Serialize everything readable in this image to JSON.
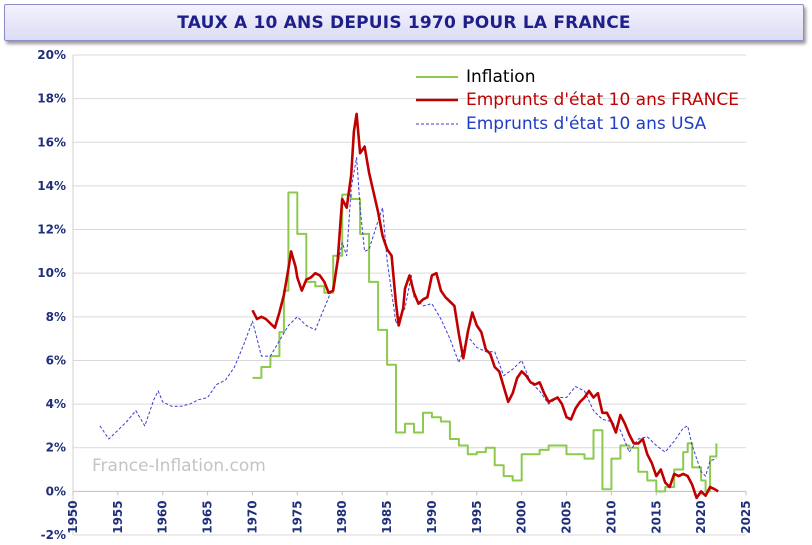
{
  "chart_data": {
    "type": "line",
    "title": "TAUX A 10 ANS DEPUIS 1970 POUR LA FRANCE",
    "watermark": "France-Inflation.com",
    "xlim": [
      1950,
      2025
    ],
    "ylim": [
      -2,
      20
    ],
    "x_ticks": [
      "1950",
      "1955",
      "1960",
      "1965",
      "1970",
      "1975",
      "1980",
      "1985",
      "1990",
      "1995",
      "2000",
      "2005",
      "2010",
      "2015",
      "2020",
      "2025"
    ],
    "y_ticks": [
      "-2%",
      "0%",
      "2%",
      "4%",
      "6%",
      "8%",
      "10%",
      "12%",
      "14%",
      "16%",
      "18%",
      "20%"
    ],
    "grid": "horizontal",
    "legend_position": "top-right",
    "series": [
      {
        "name": "Inflation",
        "color": "#8dc94d",
        "style": "step",
        "points": [
          [
            1970,
            5.2
          ],
          [
            1971,
            5.7
          ],
          [
            1972,
            6.2
          ],
          [
            1973,
            7.3
          ],
          [
            1973.5,
            9.2
          ],
          [
            1974,
            13.7
          ],
          [
            1975,
            11.8
          ],
          [
            1976,
            9.6
          ],
          [
            1977,
            9.4
          ],
          [
            1978,
            9.1
          ],
          [
            1979,
            10.8
          ],
          [
            1980,
            13.6
          ],
          [
            1981,
            13.4
          ],
          [
            1982,
            11.8
          ],
          [
            1983,
            9.6
          ],
          [
            1984,
            7.4
          ],
          [
            1985,
            5.8
          ],
          [
            1986,
            2.7
          ],
          [
            1987,
            3.1
          ],
          [
            1988,
            2.7
          ],
          [
            1989,
            3.6
          ],
          [
            1990,
            3.4
          ],
          [
            1991,
            3.2
          ],
          [
            1992,
            2.4
          ],
          [
            1993,
            2.1
          ],
          [
            1994,
            1.7
          ],
          [
            1995,
            1.8
          ],
          [
            1996,
            2.0
          ],
          [
            1997,
            1.2
          ],
          [
            1998,
            0.7
          ],
          [
            1999,
            0.5
          ],
          [
            2000,
            1.7
          ],
          [
            2001,
            1.7
          ],
          [
            2002,
            1.9
          ],
          [
            2003,
            2.1
          ],
          [
            2004,
            2.1
          ],
          [
            2005,
            1.7
          ],
          [
            2006,
            1.7
          ],
          [
            2007,
            1.5
          ],
          [
            2008,
            2.8
          ],
          [
            2009,
            0.1
          ],
          [
            2010,
            1.5
          ],
          [
            2011,
            2.1
          ],
          [
            2012,
            2.0
          ],
          [
            2013,
            0.9
          ],
          [
            2014,
            0.5
          ],
          [
            2015,
            0.0
          ],
          [
            2016,
            0.2
          ],
          [
            2017,
            1.0
          ],
          [
            2018,
            1.8
          ],
          [
            2018.5,
            2.2
          ],
          [
            2019,
            1.1
          ],
          [
            2020,
            0.5
          ],
          [
            2020.5,
            0.0
          ],
          [
            2021,
            1.6
          ],
          [
            2021.7,
            2.2
          ]
        ]
      },
      {
        "name": "Emprunts d'état 10 ans FRANCE",
        "color": "#c00000",
        "style": "line",
        "points": [
          [
            1970,
            8.3
          ],
          [
            1970.5,
            7.9
          ],
          [
            1971,
            8.0
          ],
          [
            1971.5,
            7.9
          ],
          [
            1972,
            7.7
          ],
          [
            1972.5,
            7.5
          ],
          [
            1973,
            8.2
          ],
          [
            1973.5,
            9.0
          ],
          [
            1974,
            10.2
          ],
          [
            1974.3,
            11.0
          ],
          [
            1974.8,
            10.3
          ],
          [
            1975,
            9.8
          ],
          [
            1975.5,
            9.2
          ],
          [
            1976,
            9.7
          ],
          [
            1976.5,
            9.8
          ],
          [
            1977,
            10.0
          ],
          [
            1977.5,
            9.9
          ],
          [
            1978,
            9.6
          ],
          [
            1978.5,
            9.1
          ],
          [
            1979,
            9.2
          ],
          [
            1979.5,
            10.6
          ],
          [
            1980,
            13.4
          ],
          [
            1980.5,
            13.0
          ],
          [
            1981,
            14.5
          ],
          [
            1981.3,
            16.5
          ],
          [
            1981.6,
            17.3
          ],
          [
            1982,
            15.5
          ],
          [
            1982.5,
            15.8
          ],
          [
            1983,
            14.6
          ],
          [
            1983.5,
            13.7
          ],
          [
            1984,
            12.8
          ],
          [
            1984.5,
            11.7
          ],
          [
            1985,
            11.1
          ],
          [
            1985.5,
            10.8
          ],
          [
            1986,
            8.6
          ],
          [
            1986.3,
            7.6
          ],
          [
            1986.8,
            8.4
          ],
          [
            1987,
            9.3
          ],
          [
            1987.5,
            9.9
          ],
          [
            1988,
            9.1
          ],
          [
            1988.5,
            8.6
          ],
          [
            1989,
            8.8
          ],
          [
            1989.5,
            8.9
          ],
          [
            1990,
            9.9
          ],
          [
            1990.5,
            10.0
          ],
          [
            1991,
            9.2
          ],
          [
            1991.5,
            8.9
          ],
          [
            1992,
            8.7
          ],
          [
            1992.5,
            8.5
          ],
          [
            1993,
            7.2
          ],
          [
            1993.5,
            6.1
          ],
          [
            1994,
            7.3
          ],
          [
            1994.5,
            8.2
          ],
          [
            1995,
            7.6
          ],
          [
            1995.5,
            7.3
          ],
          [
            1996,
            6.5
          ],
          [
            1996.5,
            6.3
          ],
          [
            1997,
            5.7
          ],
          [
            1997.5,
            5.5
          ],
          [
            1998,
            4.8
          ],
          [
            1998.5,
            4.1
          ],
          [
            1999,
            4.5
          ],
          [
            1999.5,
            5.2
          ],
          [
            2000,
            5.5
          ],
          [
            2000.5,
            5.3
          ],
          [
            2001,
            5.0
          ],
          [
            2001.5,
            4.9
          ],
          [
            2002,
            5.0
          ],
          [
            2002.5,
            4.5
          ],
          [
            2003,
            4.1
          ],
          [
            2003.5,
            4.2
          ],
          [
            2004,
            4.3
          ],
          [
            2004.5,
            4.0
          ],
          [
            2005,
            3.4
          ],
          [
            2005.5,
            3.3
          ],
          [
            2006,
            3.8
          ],
          [
            2006.5,
            4.1
          ],
          [
            2007,
            4.3
          ],
          [
            2007.5,
            4.6
          ],
          [
            2008,
            4.3
          ],
          [
            2008.5,
            4.5
          ],
          [
            2009,
            3.6
          ],
          [
            2009.5,
            3.6
          ],
          [
            2010,
            3.2
          ],
          [
            2010.5,
            2.7
          ],
          [
            2011,
            3.5
          ],
          [
            2011.5,
            3.1
          ],
          [
            2012,
            2.6
          ],
          [
            2012.5,
            2.2
          ],
          [
            2013,
            2.2
          ],
          [
            2013.5,
            2.4
          ],
          [
            2014,
            1.7
          ],
          [
            2014.5,
            1.3
          ],
          [
            2015,
            0.7
          ],
          [
            2015.5,
            1.0
          ],
          [
            2016,
            0.4
          ],
          [
            2016.5,
            0.2
          ],
          [
            2017,
            0.8
          ],
          [
            2017.5,
            0.7
          ],
          [
            2018,
            0.8
          ],
          [
            2018.5,
            0.7
          ],
          [
            2019,
            0.3
          ],
          [
            2019.5,
            -0.3
          ],
          [
            2020,
            0.0
          ],
          [
            2020.5,
            -0.2
          ],
          [
            2021,
            0.2
          ],
          [
            2021.5,
            0.1
          ],
          [
            2021.9,
            0.0
          ]
        ]
      },
      {
        "name": "Emprunts d'état 10 ans USA",
        "color": "#3c3cd2",
        "style": "dashed",
        "points": [
          [
            1953,
            3.0
          ],
          [
            1954,
            2.4
          ],
          [
            1955,
            2.8
          ],
          [
            1956,
            3.2
          ],
          [
            1957,
            3.7
          ],
          [
            1958,
            3.0
          ],
          [
            1959,
            4.2
          ],
          [
            1959.5,
            4.6
          ],
          [
            1960,
            4.1
          ],
          [
            1961,
            3.9
          ],
          [
            1962,
            3.9
          ],
          [
            1963,
            4.0
          ],
          [
            1964,
            4.2
          ],
          [
            1965,
            4.3
          ],
          [
            1966,
            4.9
          ],
          [
            1967,
            5.1
          ],
          [
            1968,
            5.7
          ],
          [
            1969,
            6.7
          ],
          [
            1970,
            7.8
          ],
          [
            1970.5,
            7.0
          ],
          [
            1971,
            6.2
          ],
          [
            1972,
            6.2
          ],
          [
            1973,
            6.9
          ],
          [
            1974,
            7.6
          ],
          [
            1975,
            8.0
          ],
          [
            1976,
            7.6
          ],
          [
            1977,
            7.4
          ],
          [
            1978,
            8.4
          ],
          [
            1979,
            9.4
          ],
          [
            1980,
            11.4
          ],
          [
            1980.5,
            10.8
          ],
          [
            1981,
            13.9
          ],
          [
            1981.6,
            15.3
          ],
          [
            1982,
            13.0
          ],
          [
            1982.5,
            11.0
          ],
          [
            1983,
            11.1
          ],
          [
            1984,
            12.4
          ],
          [
            1984.5,
            13.0
          ],
          [
            1985,
            10.6
          ],
          [
            1986,
            7.7
          ],
          [
            1987,
            8.4
          ],
          [
            1987.7,
            9.9
          ],
          [
            1988,
            8.9
          ],
          [
            1989,
            8.5
          ],
          [
            1990,
            8.6
          ],
          [
            1991,
            7.9
          ],
          [
            1992,
            7.0
          ],
          [
            1993,
            5.9
          ],
          [
            1994,
            7.1
          ],
          [
            1995,
            6.6
          ],
          [
            1996,
            6.4
          ],
          [
            1997,
            6.4
          ],
          [
            1998,
            5.3
          ],
          [
            1999,
            5.6
          ],
          [
            2000,
            6.0
          ],
          [
            2001,
            5.0
          ],
          [
            2002,
            4.6
          ],
          [
            2003,
            4.0
          ],
          [
            2004,
            4.3
          ],
          [
            2005,
            4.3
          ],
          [
            2006,
            4.8
          ],
          [
            2007,
            4.6
          ],
          [
            2008,
            3.7
          ],
          [
            2009,
            3.3
          ],
          [
            2010,
            3.2
          ],
          [
            2011,
            2.8
          ],
          [
            2012,
            1.8
          ],
          [
            2013,
            2.4
          ],
          [
            2014,
            2.5
          ],
          [
            2015,
            2.1
          ],
          [
            2016,
            1.8
          ],
          [
            2017,
            2.3
          ],
          [
            2018,
            2.9
          ],
          [
            2018.5,
            3.0
          ],
          [
            2019,
            2.1
          ],
          [
            2020,
            0.9
          ],
          [
            2020.5,
            0.7
          ],
          [
            2021,
            1.4
          ],
          [
            2021.7,
            1.5
          ]
        ]
      }
    ]
  }
}
